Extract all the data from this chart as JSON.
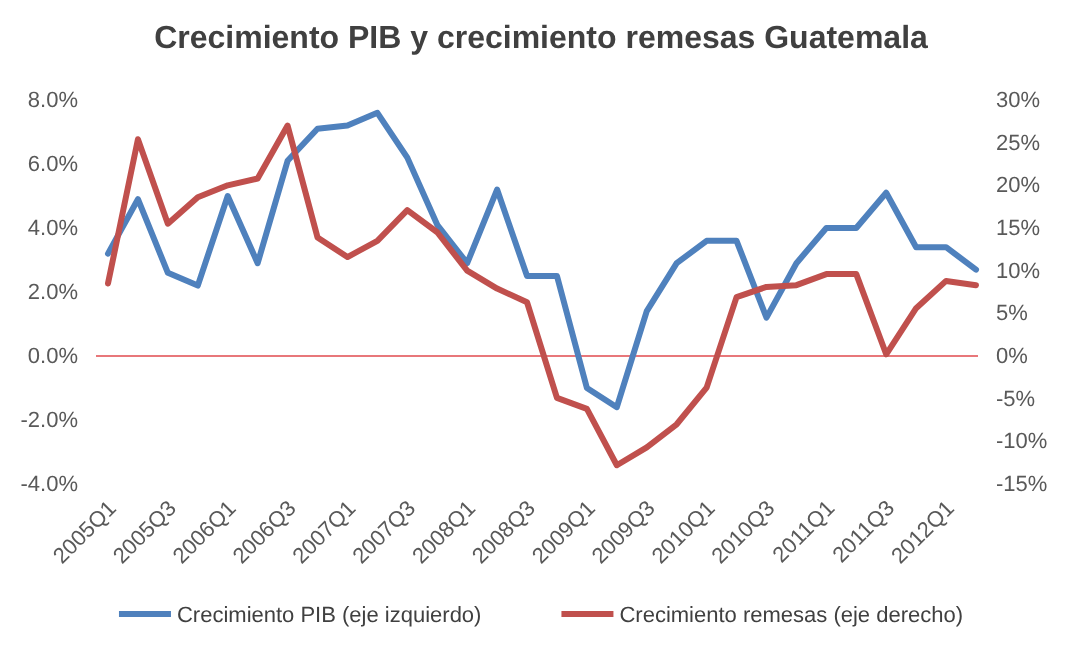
{
  "chart_data": {
    "type": "line",
    "title": "Crecimiento PIB y crecimiento remesas Guatemala",
    "categories": [
      "2005Q1",
      null,
      "2005Q3",
      null,
      "2006Q1",
      null,
      "2006Q3",
      null,
      "2007Q1",
      null,
      "2007Q3",
      null,
      "2008Q1",
      null,
      "2008Q3",
      null,
      "2009Q1",
      null,
      "2009Q3",
      null,
      "2010Q1",
      null,
      "2010Q3",
      null,
      "2011Q1",
      null,
      "2011Q3",
      null,
      "2012Q1",
      null
    ],
    "series": [
      {
        "name": "Crecimiento PIB (eje izquierdo)",
        "color": "#4f81bd",
        "values": [
          3.2,
          4.9,
          2.6,
          2.2,
          5.0,
          2.9,
          6.1,
          7.1,
          7.2,
          7.6,
          6.2,
          4.1,
          2.9,
          5.2,
          2.5,
          2.5,
          -1.0,
          -1.6,
          1.4,
          2.9,
          3.6,
          3.6,
          1.2,
          2.9,
          4.0,
          4.0,
          5.1,
          3.4,
          3.4,
          2.7
        ]
      },
      {
        "name": "Crecimiento remesas (eje derecho)",
        "color": "#c0504d",
        "axis": "y2",
        "values": [
          8.5,
          25.4,
          15.5,
          18.6,
          20.0,
          20.8,
          27.0,
          13.9,
          11.6,
          13.5,
          17.1,
          14.5,
          10.0,
          7.9,
          6.3,
          -4.9,
          -6.2,
          -12.8,
          -10.7,
          -8.0,
          -3.7,
          6.9,
          8.1,
          8.3,
          9.6,
          9.6,
          0.2,
          5.6,
          8.8,
          8.3
        ]
      }
    ],
    "ylim": [
      -4,
      8
    ],
    "yticks": [
      {
        "value": -4,
        "label": "-4.0%"
      },
      {
        "value": -2,
        "label": "-2.0%"
      },
      {
        "value": 0,
        "label": "0.0%"
      },
      {
        "value": 2,
        "label": "2.0%"
      },
      {
        "value": 4,
        "label": "4.0%"
      },
      {
        "value": 6,
        "label": "6.0%"
      },
      {
        "value": 8,
        "label": "8.0%"
      }
    ],
    "y2lim": [
      -15,
      30
    ],
    "y2ticks": [
      {
        "value": -15,
        "label": "-15%"
      },
      {
        "value": -10,
        "label": "-10%"
      },
      {
        "value": -5,
        "label": "-5%"
      },
      {
        "value": 0,
        "label": "0%"
      },
      {
        "value": 5,
        "label": "5%"
      },
      {
        "value": 10,
        "label": "10%"
      },
      {
        "value": 15,
        "label": "15%"
      },
      {
        "value": 20,
        "label": "20%"
      },
      {
        "value": 25,
        "label": "25%"
      },
      {
        "value": 30,
        "label": "30%"
      }
    ],
    "ref_lines": [
      {
        "axis": "y",
        "value": 0,
        "color": "#e8777a"
      }
    ],
    "grid": false,
    "legend": "bottom",
    "marker": "none",
    "line_style": "solid"
  }
}
